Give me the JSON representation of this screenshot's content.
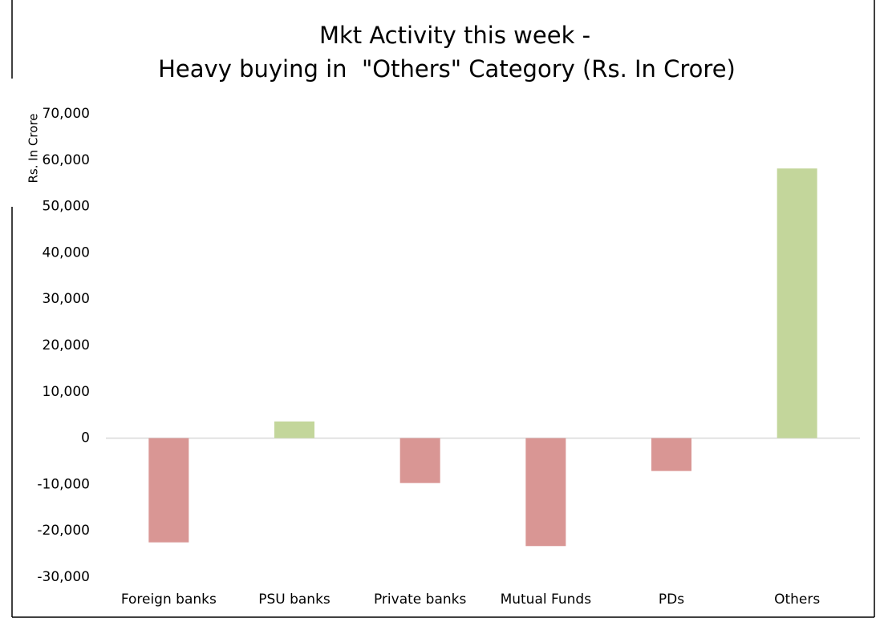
{
  "chart_data": {
    "type": "bar",
    "title": [
      "Mkt Activity this week -",
      "Heavy buying in  \"Others\" Category (Rs. In Crore)"
    ],
    "y_axis_label": "Rs. In Crore",
    "categories": [
      "Foreign banks",
      "PSU banks",
      "Private banks",
      "Mutual Funds",
      "PDs",
      "Others"
    ],
    "values": [
      -22500,
      3600,
      -9700,
      -23300,
      -7100,
      58200
    ],
    "colors": [
      "#d99694",
      "#c3d69b",
      "#d99694",
      "#d99694",
      "#d99694",
      "#c3d69b"
    ],
    "ylim": [
      -30000,
      70000
    ],
    "yticks": [
      {
        "value": -30000,
        "label": "-30,000"
      },
      {
        "value": -20000,
        "label": "-20,000"
      },
      {
        "value": -10000,
        "label": "-10,000"
      },
      0,
      {
        "value": 10000,
        "label": "10,000"
      },
      {
        "value": 20000,
        "label": "20,000"
      },
      {
        "value": 30000,
        "label": "30,000"
      },
      {
        "value": 40000,
        "label": "40,000"
      },
      {
        "value": 50000,
        "label": "50,000"
      },
      {
        "value": 60000,
        "label": "60,000"
      },
      {
        "value": 70000,
        "label": "70,000"
      }
    ],
    "grid": false
  }
}
